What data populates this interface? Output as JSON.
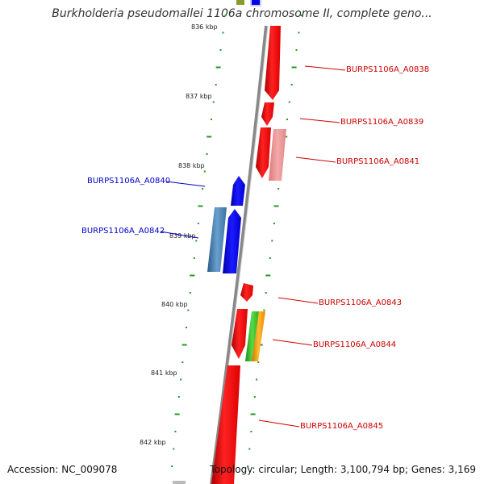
{
  "title": "Burkholderia pseudomallei 1106a chromosome II, complete geno...",
  "footer": {
    "accession": "Accession: NC_009078",
    "topology": "Topology: circular; Length: 3,100,794 bp; Genes: 3,169"
  },
  "colors": {
    "forward_gene": "#ff0000",
    "forward_gene_light": "#ee8888",
    "reverse_gene": "#0000ee",
    "reverse_gene_steel": "#4a86b8",
    "other_gene_green": "#44bb33",
    "other_gene_orange": "#ff9900",
    "reverse_label": "#0000cc",
    "forward_label": "#cc0000",
    "dot_ring": "#229922",
    "backbone": "#888888"
  },
  "kbp_ticks": [
    "836 kbp",
    "837 kbp",
    "838 kbp",
    "839 kbp",
    "840 kbp",
    "841 kbp",
    "842 kbp"
  ],
  "reverse_labels": [
    "BURPS1106A_A0840",
    "BURPS1106A_A0842"
  ],
  "forward_labels": [
    "BURPS1106A_A0838",
    "BURPS1106A_A0839",
    "BURPS1106A_A0841",
    "BURPS1106A_A0843",
    "BURPS1106A_A0844",
    "BURPS1106A_A0845"
  ]
}
